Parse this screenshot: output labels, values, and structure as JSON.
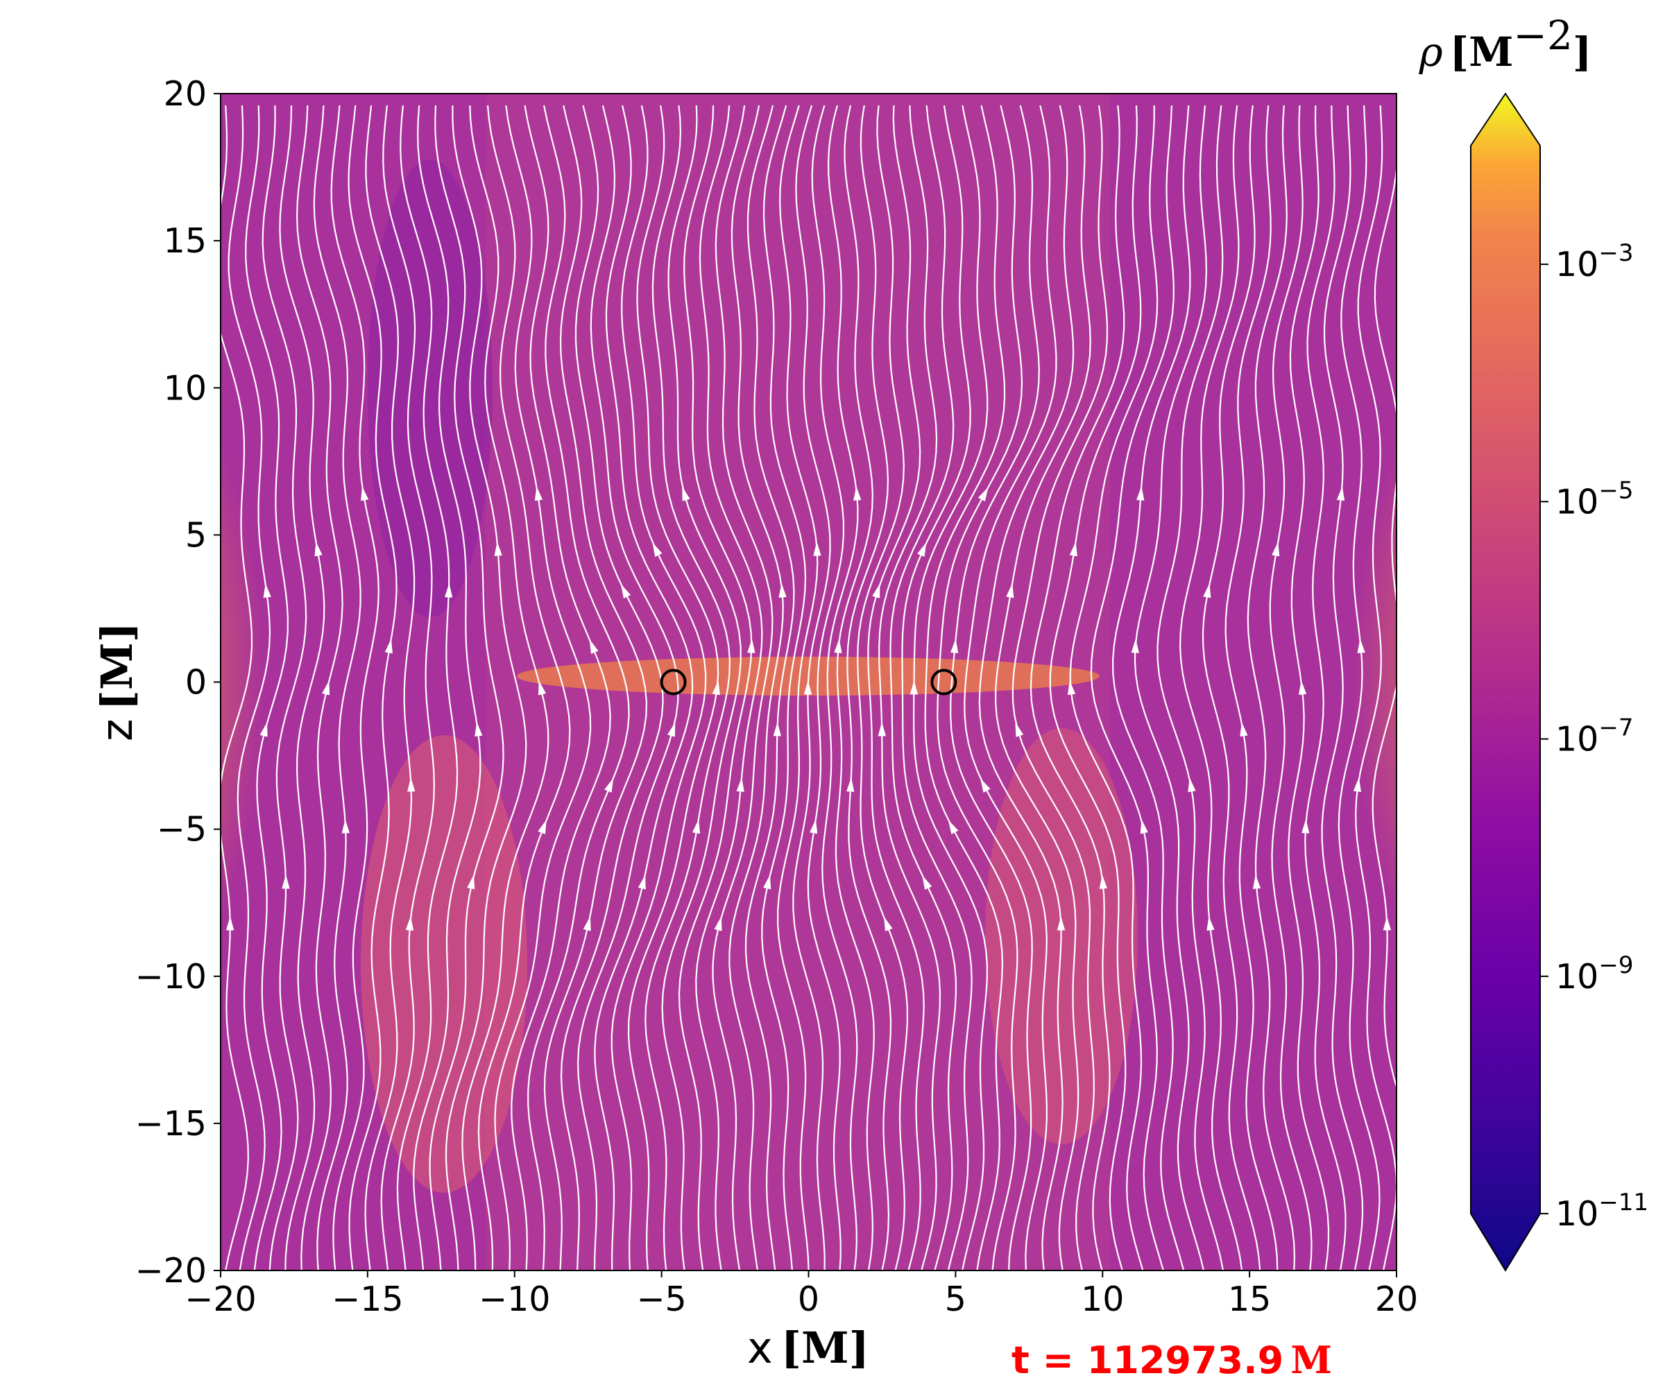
{
  "chart_data": {
    "type": "heatmap",
    "title": "",
    "xlabel": {
      "symbol": "x",
      "unit": "M"
    },
    "ylabel": {
      "symbol": "z",
      "unit": "M"
    },
    "xlim": [
      -20,
      20
    ],
    "ylim": [
      -20,
      20
    ],
    "xticks": [
      -20,
      -15,
      -10,
      -5,
      0,
      5,
      10,
      15,
      20
    ],
    "yticks": [
      -20,
      -15,
      -10,
      -5,
      0,
      5,
      10,
      15,
      20
    ],
    "xtick_labels": [
      "−20",
      "−15",
      "−10",
      "−5",
      "0",
      "5",
      "10",
      "15",
      "20"
    ],
    "ytick_labels": [
      "−20",
      "−15",
      "−10",
      "−5",
      "0",
      "5",
      "10",
      "15",
      "20"
    ],
    "colormap": "plasma",
    "colorbar": {
      "label": {
        "symbol": "ρ",
        "unit": "M",
        "exponent": "−2"
      },
      "scale": "log",
      "range": [
        1e-11,
        0.01
      ],
      "extend": "both",
      "ticks": [
        {
          "value": 0.001,
          "base": "10",
          "exponent": "−3"
        },
        {
          "value": 1e-05,
          "base": "10",
          "exponent": "−5"
        },
        {
          "value": 1e-07,
          "base": "10",
          "exponent": "−7"
        },
        {
          "value": 1e-09,
          "base": "10",
          "exponent": "−9"
        },
        {
          "value": 1e-11,
          "base": "10",
          "exponent": "−11"
        }
      ]
    },
    "black_holes": [
      {
        "x": -4.6,
        "z": 0
      },
      {
        "x": 4.6,
        "z": 0
      }
    ],
    "overlay": "magnetic field streamlines (white)",
    "annotation": {
      "text": "t = 112973.9",
      "unit": "M"
    }
  },
  "colors": {
    "background_low": "#9a2aa3",
    "background_mid": "#c24a8e",
    "dense_region": "#f2903f",
    "streamline": "#ffffff",
    "marker": "#000000",
    "annotation": "#ff0000"
  }
}
